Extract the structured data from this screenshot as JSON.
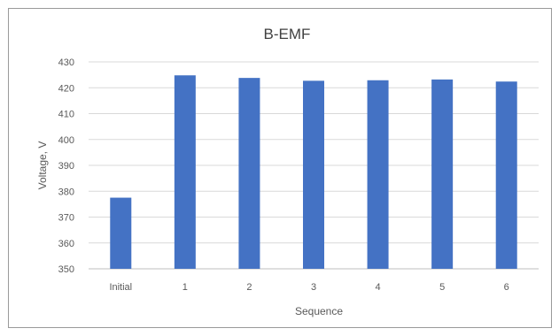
{
  "chart_data": {
    "type": "bar",
    "title": "B-EMF",
    "xlabel": "Sequence",
    "ylabel": "Voltage, V",
    "categories": [
      "Initial",
      "1",
      "2",
      "3",
      "4",
      "5",
      "6"
    ],
    "series": [
      {
        "values": [
          377.5,
          424.8,
          423.8,
          422.7,
          422.9,
          423.2,
          422.4
        ]
      }
    ],
    "ylim": [
      350,
      430
    ],
    "yticks": [
      350,
      360,
      370,
      380,
      390,
      400,
      410,
      420,
      430
    ],
    "grid": true,
    "legend": "none",
    "colors": {
      "bar": "#4472c4",
      "grid": "#d9d9d9",
      "axis": "#bfbfbf"
    }
  }
}
